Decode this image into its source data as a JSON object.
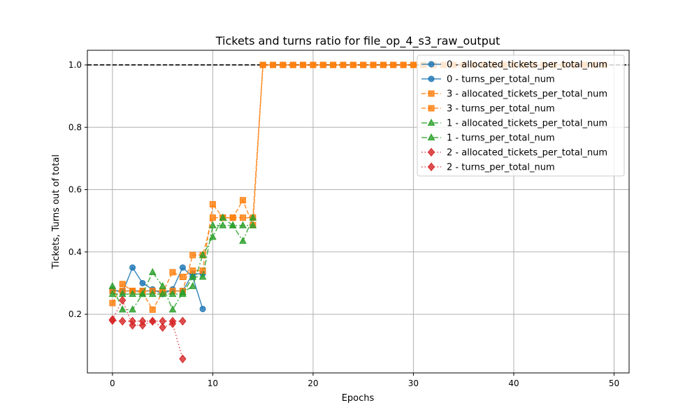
{
  "chart_data": {
    "type": "line",
    "title": "Tickets and turns ratio for file_op_4_s3_raw_output",
    "xlabel": "Epochs",
    "ylabel": "Tickets, Turns out of total",
    "xlim": [
      -2.5,
      51.5
    ],
    "ylim": [
      0.012,
      1.047
    ],
    "xticks": [
      0,
      10,
      20,
      30,
      40,
      50
    ],
    "yticks": [
      0.2,
      0.4,
      0.6,
      0.8,
      1.0
    ],
    "xtick_labels": [
      "0",
      "10",
      "20",
      "30",
      "40",
      "50"
    ],
    "ytick_labels": [
      "0.2",
      "0.4",
      "0.6",
      "0.8",
      "1.0"
    ],
    "grid": true,
    "legend_position": "upper right",
    "reference_line": {
      "y": 1.0,
      "style": "dashed",
      "color": "#000000"
    },
    "series": [
      {
        "name": "0 - allocated_tickets_per_total_num",
        "color": "#1f77b4",
        "marker": "circle",
        "linestyle": "solid",
        "x": [
          0,
          1,
          2,
          3,
          4,
          5,
          6,
          7,
          8,
          9
        ],
        "y": [
          0.275,
          0.275,
          0.275,
          0.275,
          0.275,
          0.275,
          0.275,
          0.275,
          0.33,
          0.33
        ]
      },
      {
        "name": "0 - turns_per_total_num",
        "color": "#1f77b4",
        "marker": "circle",
        "linestyle": "solid",
        "x": [
          0,
          1,
          2,
          3,
          4,
          5,
          6,
          7,
          8,
          9
        ],
        "y": [
          0.28,
          0.27,
          0.35,
          0.3,
          0.28,
          0.265,
          0.28,
          0.35,
          0.32,
          0.217
        ]
      },
      {
        "name": "3 - allocated_tickets_per_total_num",
        "color": "#ff7f0e",
        "marker": "square",
        "linestyle": "dashed",
        "x": [
          0,
          1,
          2,
          3,
          4,
          5,
          6,
          7,
          8,
          9,
          10,
          11,
          12,
          13,
          14,
          15,
          16,
          17,
          18,
          19,
          20,
          21,
          22,
          23,
          24,
          25,
          26,
          27,
          28,
          29,
          30,
          31,
          32,
          33,
          34,
          35,
          36,
          37,
          38,
          39,
          40,
          41,
          42,
          43,
          44,
          45,
          46,
          47,
          48,
          49
        ],
        "y": [
          0.275,
          0.275,
          0.275,
          0.275,
          0.275,
          0.275,
          0.275,
          0.275,
          0.39,
          0.39,
          0.51,
          0.51,
          0.51,
          0.51,
          0.51,
          1.0,
          1.0,
          1.0,
          1.0,
          1.0,
          1.0,
          1.0,
          1.0,
          1.0,
          1.0,
          1.0,
          1.0,
          1.0,
          1.0,
          1.0,
          1.0,
          1.0,
          1.0,
          1.0,
          1.0,
          1.0,
          1.0,
          1.0,
          1.0,
          1.0,
          1.0,
          1.0,
          1.0,
          1.0,
          1.0,
          1.0,
          1.0,
          1.0,
          1.0,
          1.0
        ]
      },
      {
        "name": "3 - turns_per_total_num",
        "color": "#ff7f0e",
        "marker": "square",
        "linestyle": "dashed",
        "x": [
          0,
          1,
          2,
          3,
          4,
          5,
          6,
          7,
          8,
          9,
          10,
          11,
          12,
          13,
          14,
          15,
          16,
          17,
          18,
          19,
          20,
          21,
          22,
          23,
          24,
          25,
          26,
          27,
          28,
          29,
          30,
          31,
          32,
          33,
          34,
          35,
          36,
          37,
          38,
          39,
          40,
          41,
          42,
          43,
          44,
          45,
          46,
          47,
          48,
          49
        ],
        "y": [
          0.236,
          0.297,
          0.275,
          0.27,
          0.215,
          0.27,
          0.335,
          0.32,
          0.34,
          0.34,
          0.553,
          0.51,
          0.51,
          0.566,
          0.486,
          1.0,
          1.0,
          1.0,
          1.0,
          1.0,
          1.0,
          1.0,
          1.0,
          1.0,
          1.0,
          1.0,
          1.0,
          1.0,
          1.0,
          1.0,
          1.0,
          1.0,
          1.0,
          1.0,
          1.0,
          1.0,
          1.0,
          1.0,
          1.0,
          1.0,
          1.0,
          1.0,
          1.0,
          1.0,
          1.0,
          1.0,
          1.0,
          1.0,
          1.0,
          1.0
        ]
      },
      {
        "name": "1 - allocated_tickets_per_total_num",
        "color": "#2ca02c",
        "marker": "triangle",
        "linestyle": "dashdot",
        "x": [
          0,
          1,
          2,
          3,
          4,
          5,
          6,
          7,
          8,
          9,
          10,
          11,
          12,
          13,
          14
        ],
        "y": [
          0.265,
          0.265,
          0.265,
          0.265,
          0.265,
          0.265,
          0.265,
          0.265,
          0.32,
          0.32,
          0.485,
          0.485,
          0.485,
          0.485,
          0.485
        ]
      },
      {
        "name": "1 - turns_per_total_num",
        "color": "#2ca02c",
        "marker": "triangle",
        "linestyle": "dashdot",
        "x": [
          0,
          1,
          2,
          3,
          4,
          5,
          6,
          7,
          8,
          9,
          10,
          11,
          12,
          13,
          14
        ],
        "y": [
          0.29,
          0.215,
          0.215,
          0.265,
          0.335,
          0.29,
          0.215,
          0.27,
          0.29,
          0.39,
          0.448,
          0.51,
          0.485,
          0.435,
          0.51
        ]
      },
      {
        "name": "2 - allocated_tickets_per_total_num",
        "color": "#d62728",
        "marker": "diamond",
        "linestyle": "dotted",
        "x": [
          0,
          1,
          2,
          3,
          4,
          5,
          6,
          7
        ],
        "y": [
          0.18,
          0.178,
          0.178,
          0.178,
          0.178,
          0.178,
          0.178,
          0.178
        ]
      },
      {
        "name": "2 - turns_per_total_num",
        "color": "#d62728",
        "marker": "diamond",
        "linestyle": "dotted",
        "x": [
          0,
          1,
          2,
          3,
          4,
          5,
          6,
          7
        ],
        "y": [
          0.183,
          0.245,
          0.165,
          0.165,
          0.178,
          0.158,
          0.17,
          0.057
        ]
      }
    ]
  }
}
